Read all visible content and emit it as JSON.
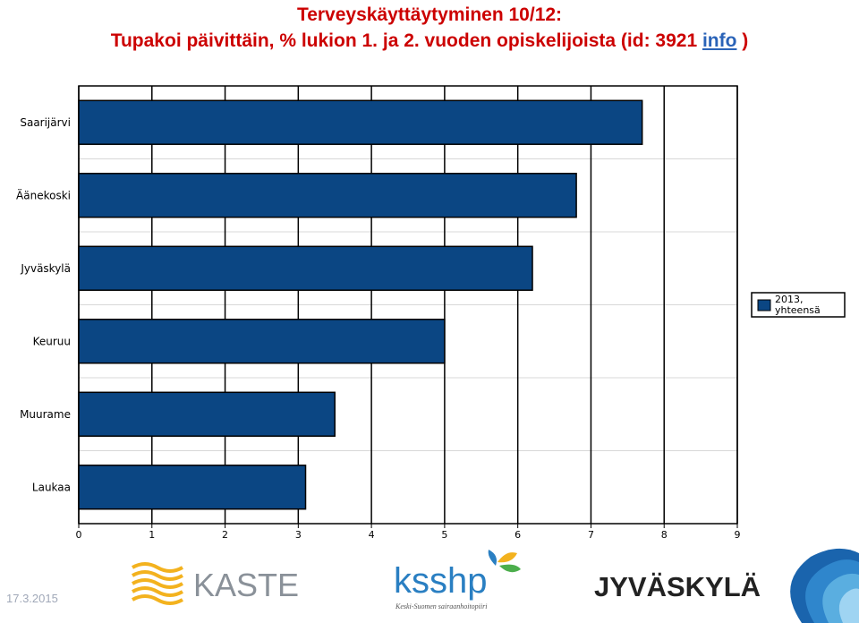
{
  "header": {
    "line1": "Terveyskäyttäytyminen 10/12:",
    "line2_prefix": "Tupakoi päivittäin, % lukion 1. ja 2. vuoden opiskelijoista (id: 3921 ",
    "line2_link": "info",
    "line2_suffix": " )"
  },
  "chart_data": {
    "type": "bar",
    "orientation": "horizontal",
    "categories": [
      "Saarijärvi",
      "Äänekoski",
      "Jyväskylä",
      "Keuruu",
      "Muurame",
      "Laukaa"
    ],
    "series": [
      {
        "name": "2013, yhteensä",
        "values": [
          7.7,
          6.8,
          6.2,
          5.0,
          3.5,
          3.1
        ],
        "color": "#0b4683"
      }
    ],
    "xlim": [
      0,
      9
    ],
    "xticks": [
      0,
      1,
      2,
      3,
      4,
      5,
      6,
      7,
      8,
      9
    ],
    "grid": true,
    "legend_position": "right"
  },
  "legend": {
    "line1": "2013,",
    "line2": "yhteensä"
  },
  "footer": {
    "date": "17.3.2015",
    "logos": {
      "kaste": "KASTE",
      "ksshp": "ksshp",
      "ksshp_sub": "Keski-Suomen sairaanhoitopiiri",
      "jyvaskyla": "JYVÄSKYLÄ"
    }
  }
}
